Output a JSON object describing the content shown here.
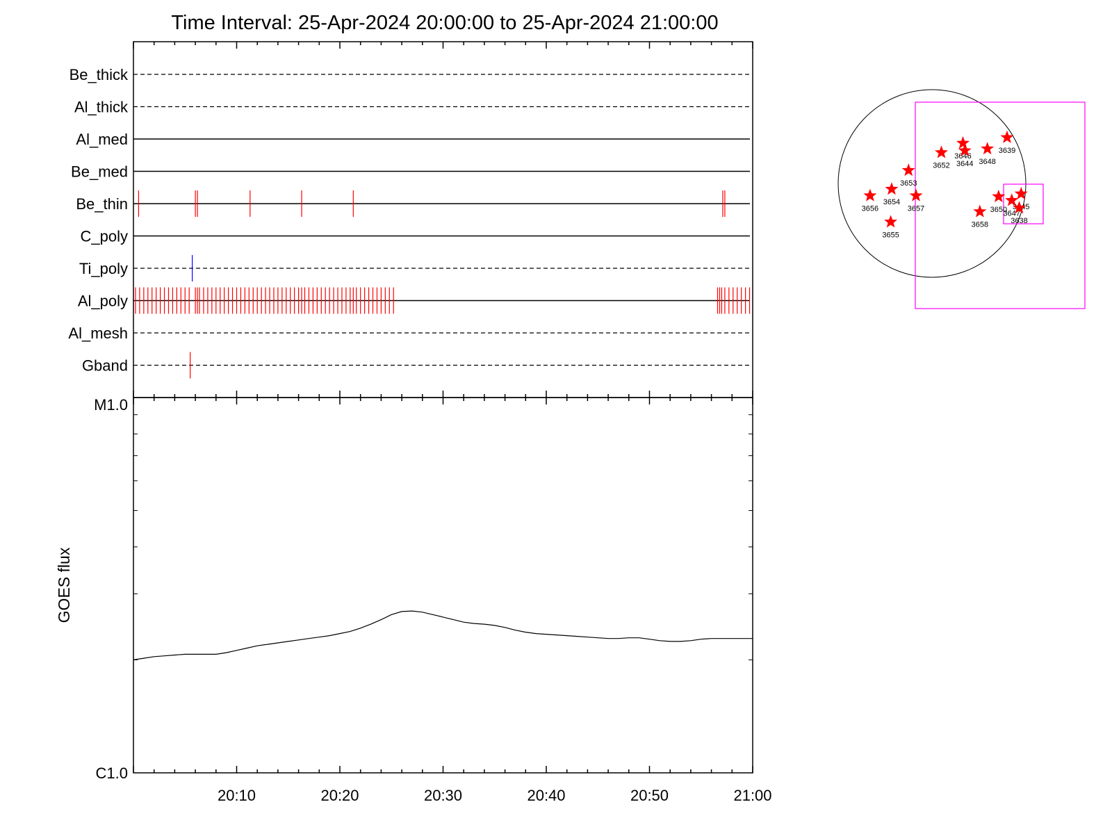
{
  "title": "Time Interval: 25-Apr-2024 20:00:00 to 25-Apr-2024 21:00:00",
  "colors": {
    "axis": "#000000",
    "event": "#ff0000",
    "event_alt": "#0000ff",
    "box": "#ff00ff",
    "star": "#ff0000"
  },
  "chart_data": [
    {
      "type": "line",
      "name": "filter-timeline",
      "xlim_minutes": [
        0,
        60
      ],
      "x_tick_labels": [
        "20:10",
        "20:20",
        "20:30",
        "20:40",
        "20:50",
        "21:00"
      ],
      "rows": [
        {
          "label": "Be_thick",
          "style": "dashed",
          "events": []
        },
        {
          "label": "Al_thick",
          "style": "dashed",
          "events": []
        },
        {
          "label": "Al_med",
          "style": "solid",
          "events": []
        },
        {
          "label": "Be_med",
          "style": "solid",
          "events": []
        },
        {
          "label": "Be_thin",
          "style": "solid",
          "events": [
            0.5,
            6.0,
            6.2,
            11.3,
            16.3,
            21.3,
            57.1,
            57.3
          ]
        },
        {
          "label": "C_poly",
          "style": "solid",
          "events": []
        },
        {
          "label": "Ti_poly",
          "style": "dashed",
          "events": [
            5.7
          ],
          "color": "blue"
        },
        {
          "label": "Al_poly",
          "style": "solid",
          "events": [
            0.2,
            0.6,
            1.0,
            1.4,
            1.8,
            2.2,
            2.6,
            3.0,
            3.4,
            3.8,
            4.2,
            4.6,
            5.0,
            5.4,
            6.0,
            6.2,
            6.4,
            6.8,
            7.2,
            7.6,
            8.0,
            8.4,
            8.8,
            9.2,
            9.6,
            10.0,
            10.4,
            10.8,
            11.2,
            11.6,
            12.0,
            12.4,
            12.8,
            13.2,
            13.6,
            14.0,
            14.4,
            14.8,
            15.2,
            15.6,
            16.0,
            16.3,
            16.6,
            17.0,
            17.4,
            17.8,
            18.2,
            18.6,
            19.0,
            19.4,
            19.8,
            20.2,
            20.6,
            21.0,
            21.3,
            21.6,
            22.0,
            22.4,
            22.8,
            23.2,
            23.6,
            24.0,
            24.4,
            24.8,
            25.2,
            56.6,
            56.8,
            57.0,
            57.3,
            57.7,
            58.1,
            58.5,
            58.9,
            59.3,
            59.7
          ]
        },
        {
          "label": "Al_mesh",
          "style": "dashed",
          "events": []
        },
        {
          "label": "Gband",
          "style": "dashed",
          "events": [
            5.5
          ]
        }
      ]
    },
    {
      "type": "line",
      "name": "goes-flux",
      "ylabel": "GOES flux",
      "y_tick_labels": [
        "C1.0",
        "M1.0"
      ],
      "ylim_log10": [
        -6,
        -5
      ],
      "xlim_minutes": [
        0,
        60
      ],
      "x_tick_labels": [
        "20:10",
        "20:20",
        "20:30",
        "20:40",
        "20:50",
        "21:00"
      ],
      "series": [
        {
          "x": [
            0,
            1,
            2,
            3,
            4,
            5,
            6,
            7,
            8,
            9,
            10,
            11,
            12,
            13,
            14,
            15,
            16,
            17,
            18,
            19,
            20,
            21,
            22,
            23,
            24,
            25,
            26,
            27,
            28,
            29,
            30,
            31,
            32,
            33,
            34,
            35,
            36,
            37,
            38,
            39,
            40,
            41,
            42,
            43,
            44,
            45,
            46,
            47,
            48,
            49,
            50,
            51,
            52,
            53,
            54,
            55,
            56,
            57,
            58,
            59,
            60
          ],
          "y": [
            2e-06,
            2.02e-06,
            2.04e-06,
            2.05e-06,
            2.06e-06,
            2.07e-06,
            2.07e-06,
            2.07e-06,
            2.07e-06,
            2.09e-06,
            2.12e-06,
            2.15e-06,
            2.18e-06,
            2.2e-06,
            2.22e-06,
            2.24e-06,
            2.26e-06,
            2.28e-06,
            2.3e-06,
            2.32e-06,
            2.35e-06,
            2.38e-06,
            2.43e-06,
            2.49e-06,
            2.56e-06,
            2.64e-06,
            2.69e-06,
            2.7e-06,
            2.68e-06,
            2.64e-06,
            2.6e-06,
            2.56e-06,
            2.52e-06,
            2.5e-06,
            2.49e-06,
            2.47e-06,
            2.44e-06,
            2.4e-06,
            2.37e-06,
            2.35e-06,
            2.34e-06,
            2.33e-06,
            2.32e-06,
            2.31e-06,
            2.3e-06,
            2.29e-06,
            2.28e-06,
            2.28e-06,
            2.29e-06,
            2.29e-06,
            2.27e-06,
            2.25e-06,
            2.24e-06,
            2.24e-06,
            2.25e-06,
            2.27e-06,
            2.28e-06,
            2.28e-06,
            2.28e-06,
            2.28e-06,
            2.28e-06
          ]
        }
      ]
    },
    {
      "type": "scatter",
      "name": "solar-disk-regions",
      "points": [
        {
          "label": "3639",
          "x": 0.8,
          "y": 0.49
        },
        {
          "label": "3646",
          "x": 0.33,
          "y": 0.43
        },
        {
          "label": "3644",
          "x": 0.35,
          "y": 0.35
        },
        {
          "label": "3652",
          "x": 0.1,
          "y": 0.33
        },
        {
          "label": "3648",
          "x": 0.59,
          "y": 0.37
        },
        {
          "label": "3653",
          "x": -0.25,
          "y": 0.14
        },
        {
          "label": "3656",
          "x": -0.66,
          "y": -0.13
        },
        {
          "label": "3654",
          "x": -0.43,
          "y": -0.06
        },
        {
          "label": "3657",
          "x": -0.17,
          "y": -0.13
        },
        {
          "label": "3655",
          "x": -0.44,
          "y": -0.41
        },
        {
          "label": "3658",
          "x": 0.51,
          "y": -0.3
        },
        {
          "label": "3650",
          "x": 0.71,
          "y": -0.14
        },
        {
          "label": "3645",
          "x": 0.95,
          "y": -0.11
        },
        {
          "label": "3647",
          "x": 0.85,
          "y": -0.18
        },
        {
          "label": "3638",
          "x": 0.93,
          "y": -0.26
        }
      ]
    }
  ]
}
